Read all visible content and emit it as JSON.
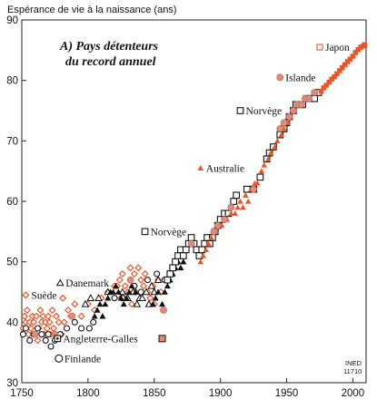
{
  "chart_data": {
    "type": "scatter",
    "ylabel": "Espérance de vie à la naissance (ans)",
    "title_lines": [
      "A) Pays détenteurs",
      "du record annuel"
    ],
    "credit_lines": [
      "INED",
      "11710"
    ],
    "xlim": [
      1750,
      2010
    ],
    "ylim": [
      30,
      90
    ],
    "x_ticks": [
      "1750",
      "1800",
      "1850",
      "1900",
      "1950",
      "2000"
    ],
    "y_ticks": [
      "30",
      "40",
      "50",
      "60",
      "70",
      "80",
      "90"
    ],
    "grid": false,
    "colors": {
      "orange": "#e8562a",
      "salmon": "#e08a78",
      "black": "#111111"
    },
    "annotations": [
      {
        "label": "Japon",
        "x": 1975,
        "y": 85.5,
        "marker": "square-open-orange"
      },
      {
        "label": "Islande",
        "x": 1945,
        "y": 80.5,
        "marker": "circle-salmon"
      },
      {
        "label": "Norvège",
        "x": 1915,
        "y": 75,
        "marker": "square-open-black"
      },
      {
        "label": "Australie",
        "x": 1885,
        "y": 65.5,
        "marker": "triangle-orange"
      },
      {
        "label": "Norvège",
        "x": 1843,
        "y": 55,
        "marker": "square-open-black"
      },
      {
        "label": "Danemark",
        "x": 1779,
        "y": 46.5,
        "marker": "triangle-open"
      },
      {
        "label": "Suède",
        "x": 1753,
        "y": 44.5,
        "marker": "diamond-open-orange"
      },
      {
        "label": "Angleterre-Galles",
        "x": 1777,
        "y": 37.3,
        "marker": "square-open-black-dot"
      },
      {
        "label": "Finlande",
        "x": 1778,
        "y": 34,
        "marker": "circle-open"
      }
    ],
    "end_marker": {
      "x": 1856,
      "y": 37.3,
      "marker": "square-salmon"
    },
    "series": [
      {
        "marker": "diamond-open-orange",
        "points": [
          [
            1751,
            39
          ],
          [
            1752,
            41
          ],
          [
            1753,
            40
          ],
          [
            1754,
            42
          ],
          [
            1755,
            38
          ],
          [
            1756,
            40
          ],
          [
            1757,
            39
          ],
          [
            1758,
            41
          ],
          [
            1759,
            40
          ],
          [
            1760,
            38
          ],
          [
            1761,
            41
          ],
          [
            1762,
            37
          ],
          [
            1763,
            39
          ],
          [
            1764,
            42
          ],
          [
            1765,
            40
          ],
          [
            1766,
            41
          ],
          [
            1767,
            38
          ],
          [
            1768,
            40
          ],
          [
            1769,
            39
          ],
          [
            1770,
            41
          ],
          [
            1771,
            40
          ],
          [
            1772,
            38
          ],
          [
            1773,
            42
          ],
          [
            1774,
            39
          ],
          [
            1776,
            41
          ],
          [
            1778,
            40
          ],
          [
            1780,
            38
          ],
          [
            1781,
            44
          ],
          [
            1782,
            40
          ],
          [
            1785,
            42
          ],
          [
            1787,
            41
          ],
          [
            1790,
            43
          ],
          [
            1795,
            41
          ],
          [
            1800,
            43
          ],
          [
            1805,
            42
          ],
          [
            1810,
            44
          ],
          [
            1815,
            45
          ],
          [
            1820,
            46
          ],
          [
            1822,
            46
          ],
          [
            1824,
            47
          ],
          [
            1825,
            44
          ],
          [
            1826,
            48
          ],
          [
            1828,
            46
          ],
          [
            1830,
            45
          ],
          [
            1832,
            49
          ],
          [
            1833,
            43
          ],
          [
            1835,
            48
          ],
          [
            1836,
            45
          ],
          [
            1838,
            49
          ],
          [
            1840,
            47
          ],
          [
            1842,
            46
          ],
          [
            1843,
            48
          ],
          [
            1845,
            45
          ],
          [
            1847,
            44
          ],
          [
            1849,
            46
          ],
          [
            1850,
            43
          ],
          [
            1853,
            47
          ],
          [
            1855,
            45
          ]
        ]
      },
      {
        "marker": "circle-open-black",
        "points": [
          [
            1751,
            38
          ],
          [
            1753,
            39
          ],
          [
            1756,
            37
          ],
          [
            1759,
            38
          ],
          [
            1762,
            39
          ],
          [
            1765,
            38
          ],
          [
            1768,
            37
          ],
          [
            1770,
            38
          ],
          [
            1772,
            36
          ],
          [
            1775,
            37
          ],
          [
            1779,
            38
          ],
          [
            1784,
            39
          ],
          [
            1790,
            40
          ],
          [
            1795,
            39
          ],
          [
            1801,
            39
          ],
          [
            1804,
            40
          ],
          [
            1820,
            44
          ],
          [
            1826,
            44
          ],
          [
            1835,
            46
          ],
          [
            1840,
            45
          ],
          [
            1845,
            47
          ],
          [
            1852,
            48
          ],
          [
            1858,
            47
          ]
        ]
      },
      {
        "marker": "triangle-open-black",
        "points": [
          [
            1798,
            43
          ],
          [
            1802,
            44
          ],
          [
            1808,
            44
          ],
          [
            1815,
            45
          ],
          [
            1826,
            45
          ],
          [
            1830,
            44
          ],
          [
            1834,
            45
          ],
          [
            1837,
            43
          ],
          [
            1839,
            44
          ],
          [
            1841,
            44
          ],
          [
            1844,
            45
          ],
          [
            1846,
            43
          ],
          [
            1848,
            46
          ],
          [
            1850,
            45
          ],
          [
            1853,
            47
          ]
        ]
      },
      {
        "marker": "triangle-filled-black",
        "points": [
          [
            1805,
            41
          ],
          [
            1807,
            42
          ],
          [
            1809,
            43
          ],
          [
            1811,
            41
          ],
          [
            1813,
            43
          ],
          [
            1815,
            44
          ],
          [
            1817,
            45
          ],
          [
            1819,
            45
          ],
          [
            1821,
            46
          ],
          [
            1823,
            45
          ],
          [
            1825,
            44
          ],
          [
            1827,
            43
          ],
          [
            1829,
            44
          ],
          [
            1831,
            45
          ],
          [
            1833,
            46
          ],
          [
            1836,
            45
          ],
          [
            1849,
            43
          ],
          [
            1851,
            44
          ],
          [
            1853,
            45
          ],
          [
            1856,
            43
          ],
          [
            1858,
            45
          ],
          [
            1860,
            46
          ],
          [
            1862,
            47
          ],
          [
            1864,
            48
          ],
          [
            1866,
            49
          ],
          [
            1868,
            50
          ],
          [
            1870,
            49
          ],
          [
            1872,
            50
          ]
        ]
      },
      {
        "marker": "square-open-black",
        "points": [
          [
            1860,
            47
          ],
          [
            1862,
            48
          ],
          [
            1864,
            49
          ],
          [
            1866,
            50
          ],
          [
            1868,
            51
          ],
          [
            1870,
            52
          ],
          [
            1872,
            51
          ],
          [
            1874,
            52
          ],
          [
            1876,
            53
          ],
          [
            1878,
            54
          ],
          [
            1880,
            53
          ],
          [
            1882,
            52
          ],
          [
            1884,
            51
          ],
          [
            1886,
            52
          ],
          [
            1888,
            53
          ],
          [
            1890,
            54
          ],
          [
            1892,
            53
          ],
          [
            1894,
            54
          ],
          [
            1896,
            55
          ],
          [
            1898,
            56
          ],
          [
            1900,
            57
          ],
          [
            1903,
            58
          ],
          [
            1906,
            58
          ],
          [
            1910,
            60
          ],
          [
            1912,
            61
          ],
          [
            1920,
            62
          ],
          [
            1925,
            62
          ],
          [
            1930,
            64
          ],
          [
            1935,
            67
          ],
          [
            1937,
            68
          ],
          [
            1940,
            69
          ],
          [
            1945,
            71
          ],
          [
            1948,
            72
          ],
          [
            1950,
            73
          ],
          [
            1952,
            74
          ],
          [
            1955,
            75
          ],
          [
            1957,
            76
          ],
          [
            1960,
            76
          ],
          [
            1962,
            76
          ],
          [
            1965,
            77
          ],
          [
            1968,
            77
          ],
          [
            1971,
            77
          ],
          [
            1974,
            78
          ]
        ]
      },
      {
        "marker": "triangle-filled-orange",
        "points": [
          [
            1885,
            50
          ],
          [
            1887,
            51
          ],
          [
            1889,
            52
          ],
          [
            1891,
            53
          ],
          [
            1893,
            54
          ],
          [
            1895,
            55
          ],
          [
            1897,
            55
          ],
          [
            1899,
            56
          ],
          [
            1901,
            56
          ],
          [
            1905,
            57
          ],
          [
            1908,
            58
          ],
          [
            1911,
            58
          ],
          [
            1913,
            59
          ],
          [
            1915,
            60
          ],
          [
            1917,
            59
          ],
          [
            1919,
            61
          ],
          [
            1921,
            60
          ],
          [
            1923,
            62
          ],
          [
            1926,
            63
          ],
          [
            1928,
            63
          ],
          [
            1931,
            65
          ],
          [
            1933,
            66
          ],
          [
            1936,
            67
          ],
          [
            1938,
            68
          ],
          [
            1941,
            69
          ],
          [
            1943,
            70
          ],
          [
            1946,
            71
          ],
          [
            1948,
            72
          ],
          [
            1951,
            73
          ],
          [
            1953,
            74
          ],
          [
            1956,
            75
          ],
          [
            1958,
            76
          ]
        ]
      },
      {
        "marker": "circle-filled-salmon",
        "points": [
          [
            1760,
            38
          ],
          [
            1775,
            38
          ],
          [
            1788,
            41
          ],
          [
            1832,
            47
          ],
          [
            1857,
            42
          ],
          [
            1878,
            53
          ],
          [
            1895,
            55
          ],
          [
            1898,
            56
          ],
          [
            1903,
            57
          ],
          [
            1908,
            59
          ],
          [
            1925,
            62
          ],
          [
            1945,
            72
          ],
          [
            1948,
            73
          ],
          [
            1952,
            74
          ],
          [
            1955,
            75
          ],
          [
            1958,
            76
          ],
          [
            1961,
            76
          ],
          [
            1964,
            77
          ],
          [
            1967,
            77
          ],
          [
            1971,
            78
          ]
        ]
      },
      {
        "marker": "square-filled-orange",
        "points": [
          [
            1976,
            78.2
          ],
          [
            1978,
            78.8
          ],
          [
            1980,
            79.2
          ],
          [
            1982,
            79.7
          ],
          [
            1984,
            80.2
          ],
          [
            1986,
            80.6
          ],
          [
            1988,
            81.1
          ],
          [
            1990,
            81.6
          ],
          [
            1992,
            82.1
          ],
          [
            1994,
            82.6
          ],
          [
            1996,
            83.1
          ],
          [
            1998,
            83.5
          ],
          [
            2000,
            84.0
          ],
          [
            2002,
            84.6
          ],
          [
            2004,
            85.1
          ],
          [
            2006,
            85.5
          ],
          [
            2008,
            85.7
          ],
          [
            2009,
            85.9
          ]
        ]
      }
    ]
  }
}
